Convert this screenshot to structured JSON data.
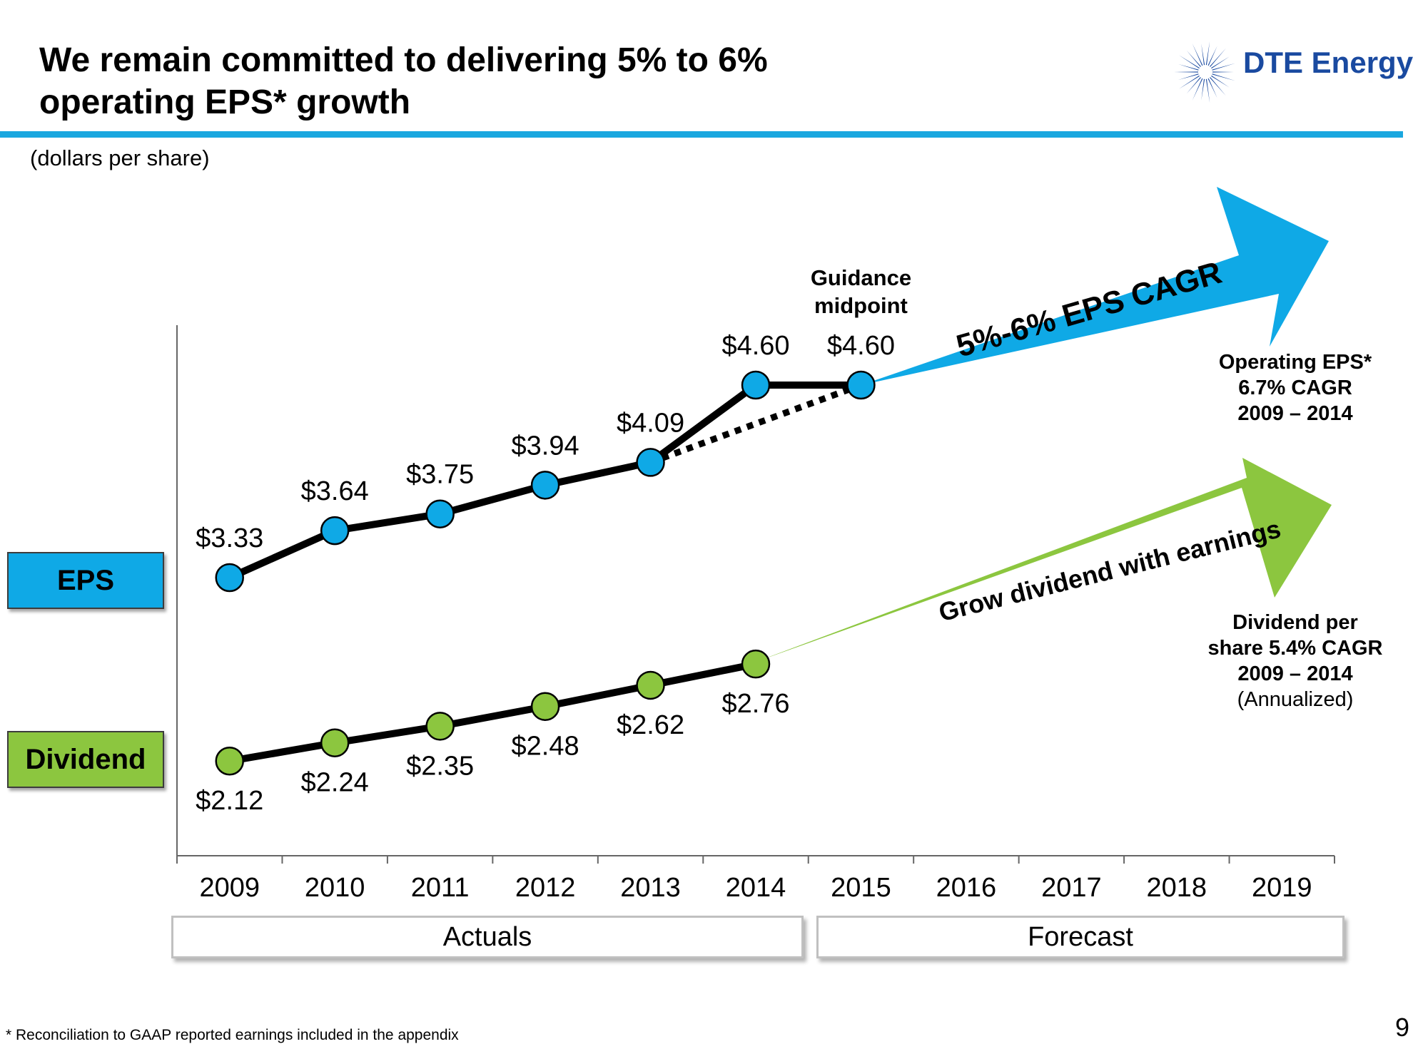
{
  "header": {
    "title_line1": "We remain committed to delivering 5% to 6%",
    "title_line2": "operating EPS* growth",
    "logo_text": "DTE Energy",
    "accent_color": "#1aa7df"
  },
  "units_label": "(dollars per share)",
  "legend": {
    "eps": "EPS",
    "eps_color": "#0fa9e6",
    "dividend": "Dividend",
    "dividend_color": "#8cc63f"
  },
  "annotations": {
    "guidance_line1": "Guidance",
    "guidance_line2": "midpoint",
    "eps_arrow": "5%-6% EPS CAGR",
    "div_arrow": "Grow dividend with earnings",
    "eps_note": [
      "Operating EPS*",
      "6.7% CAGR",
      "2009 – 2014"
    ],
    "div_note": [
      "Dividend per",
      "share 5.4% CAGR",
      "2009 – 2014",
      "(Annualized)"
    ]
  },
  "periods": {
    "actuals": "Actuals",
    "forecast": "Forecast"
  },
  "footnote": "*   Reconciliation to GAAP reported earnings included in the appendix",
  "page_number": "9",
  "chart_data": {
    "type": "line",
    "categories": [
      "2009",
      "2010",
      "2011",
      "2012",
      "2013",
      "2014",
      "2015",
      "2016",
      "2017",
      "2018",
      "2019"
    ],
    "series": [
      {
        "name": "EPS",
        "x": [
          "2009",
          "2010",
          "2011",
          "2012",
          "2013",
          "2014",
          "2015"
        ],
        "values": [
          3.33,
          3.64,
          3.75,
          3.94,
          4.09,
          4.6,
          4.6
        ],
        "labels": [
          "$3.33",
          "$3.64",
          "$3.75",
          "$3.94",
          "$4.09",
          "$4.60",
          "$4.60"
        ],
        "color": "#0fa9e6"
      },
      {
        "name": "Dividend",
        "x": [
          "2009",
          "2010",
          "2011",
          "2012",
          "2013",
          "2014"
        ],
        "values": [
          2.12,
          2.24,
          2.35,
          2.48,
          2.62,
          2.76
        ],
        "labels": [
          "$2.12",
          "$2.24",
          "$2.35",
          "$2.48",
          "$2.62",
          "$2.76"
        ],
        "color": "#8cc63f"
      }
    ],
    "trend_line": {
      "from": "2013",
      "to": "2015",
      "style": "dotted"
    },
    "grid": false,
    "xlabel": "",
    "ylabel": ""
  }
}
